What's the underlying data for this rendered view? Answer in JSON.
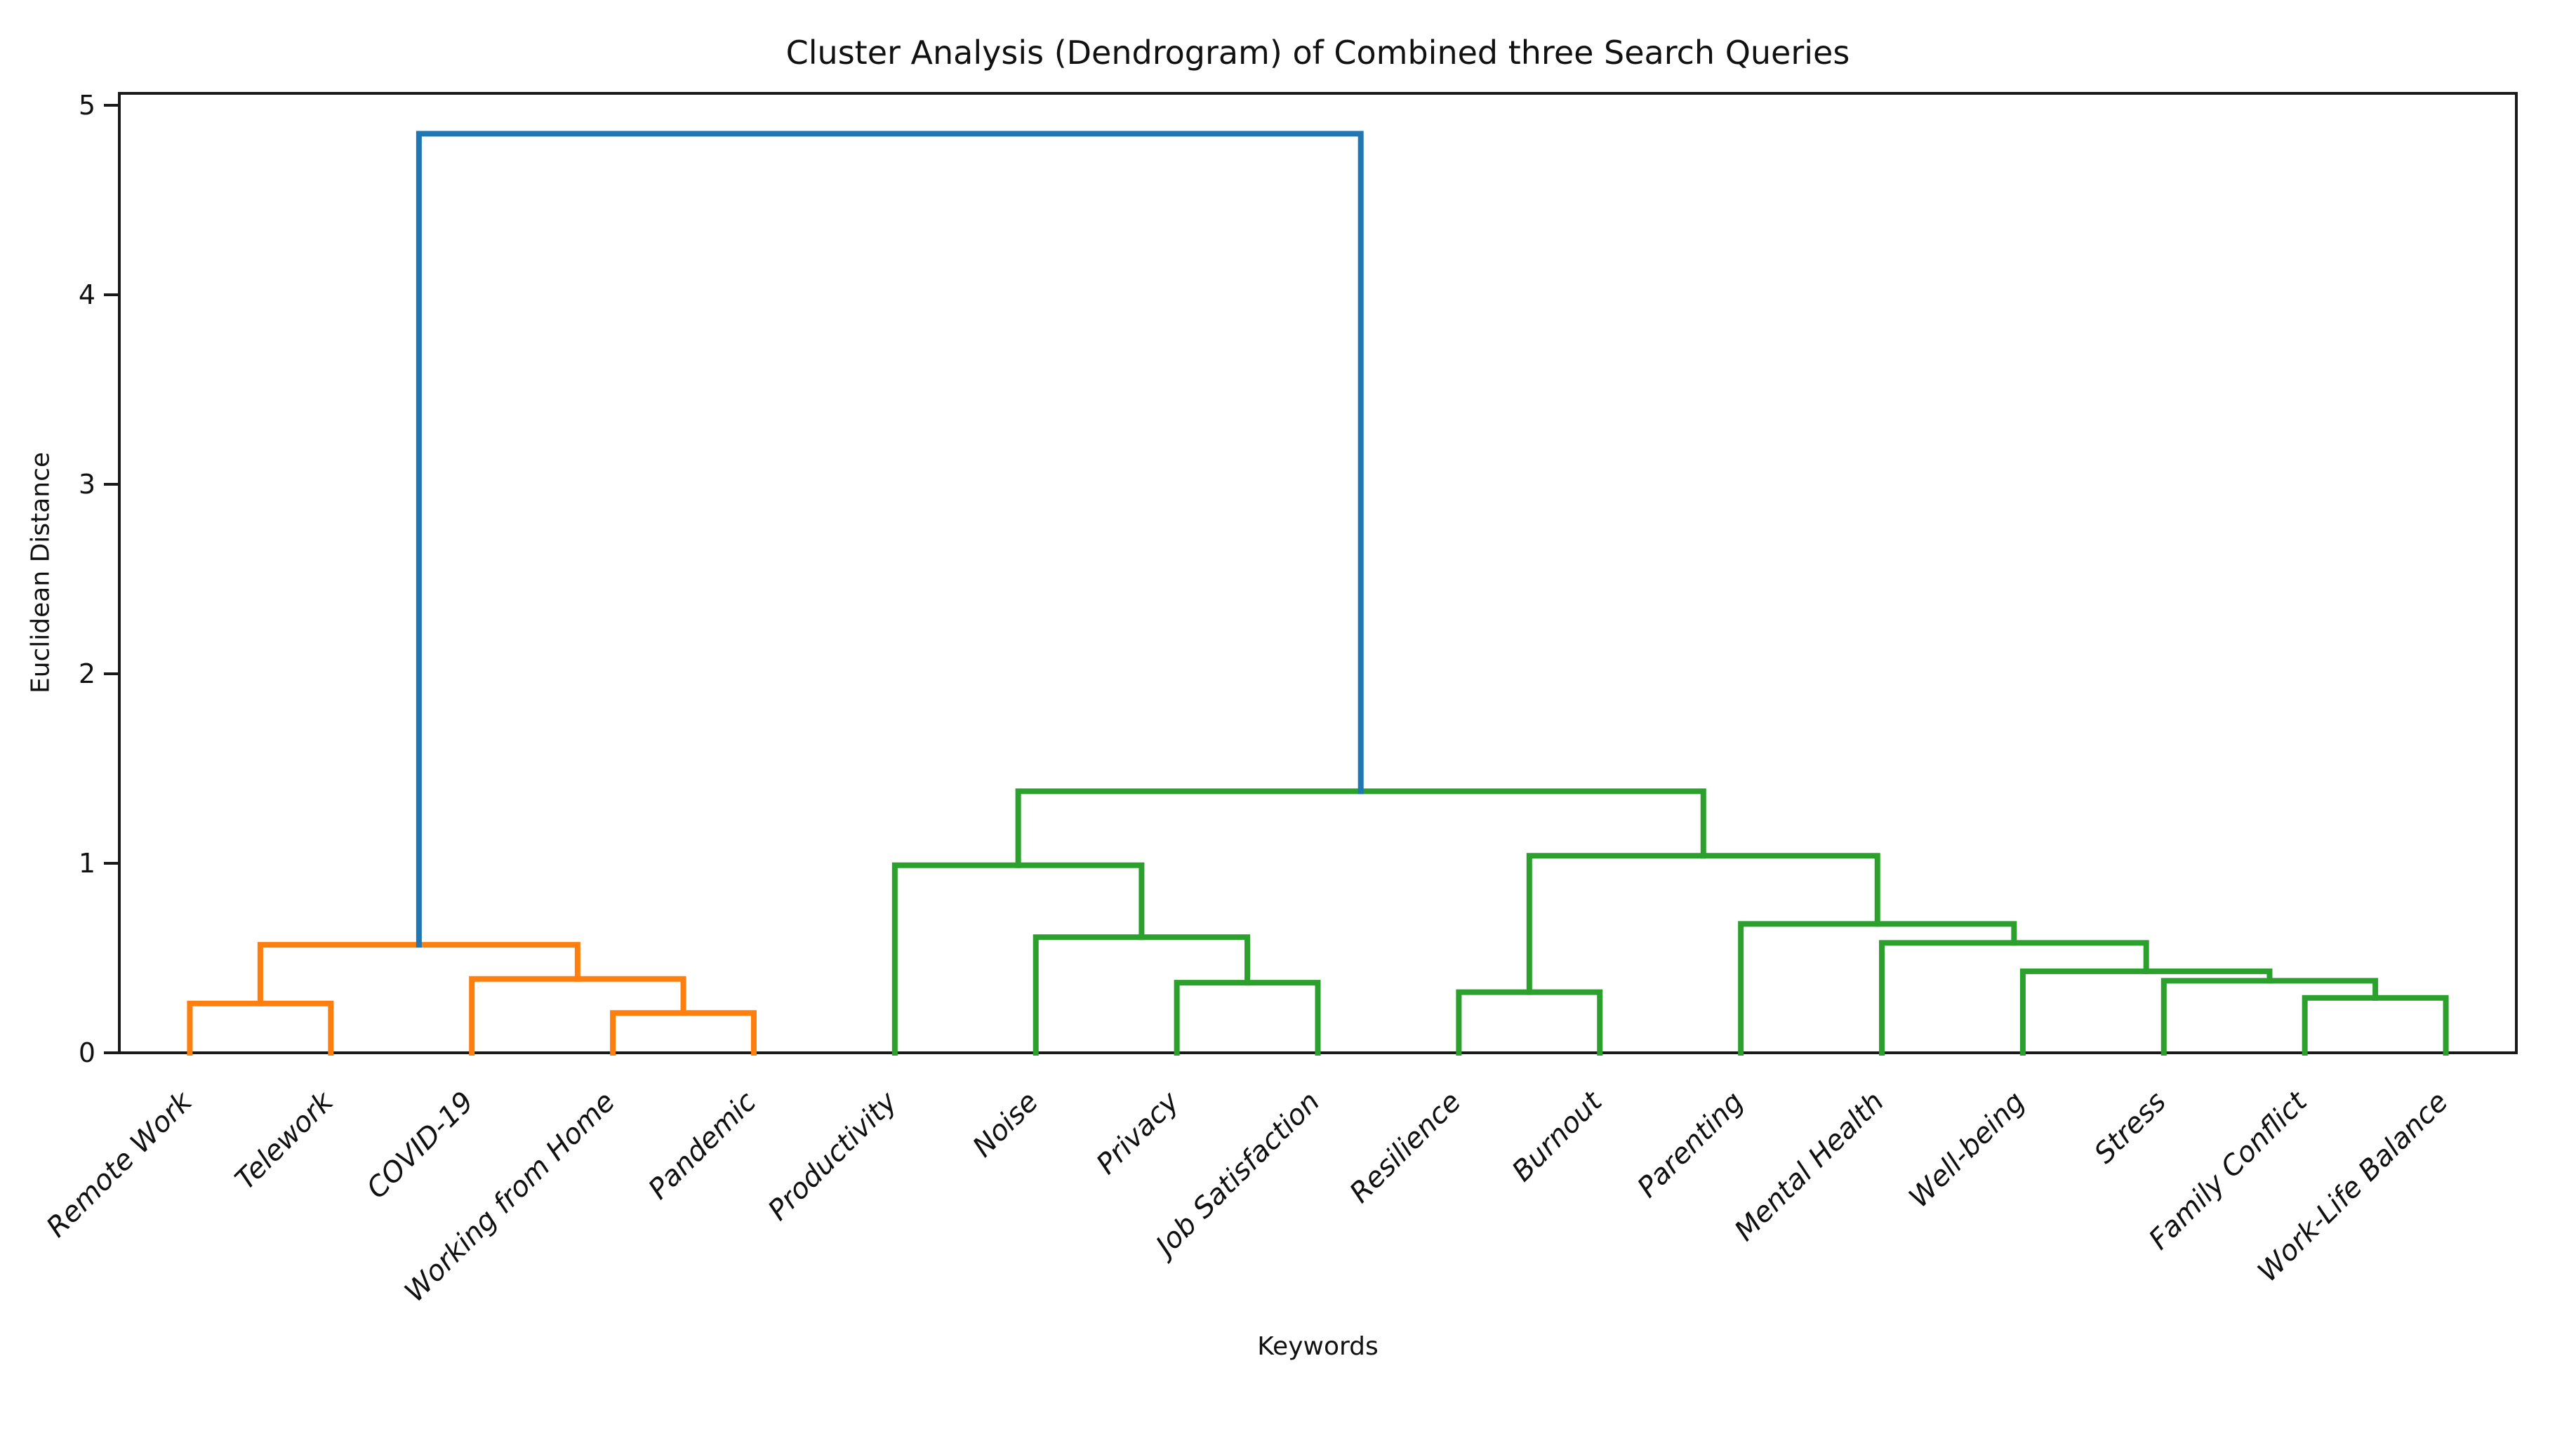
{
  "figure": {
    "background": "#ffffff"
  },
  "chart_data": {
    "type": "dendrogram",
    "title": "Cluster Analysis (Dendrogram) of Combined three Search Queries",
    "xlabel": "Keywords",
    "ylabel": "Euclidean Distance",
    "ylim": [
      0,
      5.06
    ],
    "yticks": [
      0,
      1,
      2,
      3,
      4,
      5
    ],
    "grid": false,
    "legend": null,
    "leaves": [
      "Remote Work",
      "Telework",
      "COVID-19",
      "Working from Home",
      "Pandemic",
      "Productivity",
      "Noise",
      "Privacy",
      "Job Satisfaction",
      "Resilience",
      "Burnout",
      "Parenting",
      "Mental Health",
      "Well-being",
      "Stress",
      "Family Conflict",
      "Work-Life Balance"
    ],
    "colors": {
      "cluster_orange": "#ff7f0e",
      "cluster_green": "#2ca02c",
      "root_blue": "#1f77b4",
      "axis": "#1a1a1a"
    },
    "merges": [
      {
        "id": "M1",
        "left": "L0",
        "right": "L1",
        "height": 0.26,
        "color": "cluster_orange"
      },
      {
        "id": "M2",
        "left": "L3",
        "right": "L4",
        "height": 0.21,
        "color": "cluster_orange"
      },
      {
        "id": "M3",
        "left": "L2",
        "right": "M2",
        "height": 0.39,
        "color": "cluster_orange"
      },
      {
        "id": "M4",
        "left": "M1",
        "right": "M3",
        "height": 0.57,
        "color": "cluster_orange"
      },
      {
        "id": "M5",
        "left": "L7",
        "right": "L8",
        "height": 0.37,
        "color": "cluster_green"
      },
      {
        "id": "M6",
        "left": "L6",
        "right": "M5",
        "height": 0.61,
        "color": "cluster_green"
      },
      {
        "id": "M7",
        "left": "L5",
        "right": "M6",
        "height": 0.99,
        "color": "cluster_green"
      },
      {
        "id": "M8",
        "left": "L9",
        "right": "L10",
        "height": 0.32,
        "color": "cluster_green"
      },
      {
        "id": "M9",
        "left": "L15",
        "right": "L16",
        "height": 0.29,
        "color": "cluster_green"
      },
      {
        "id": "M10",
        "left": "L14",
        "right": "M9",
        "height": 0.38,
        "color": "cluster_green"
      },
      {
        "id": "M11",
        "left": "L13",
        "right": "M10",
        "height": 0.43,
        "color": "cluster_green"
      },
      {
        "id": "M12",
        "left": "L12",
        "right": "M11",
        "height": 0.58,
        "color": "cluster_green"
      },
      {
        "id": "M13",
        "left": "L11",
        "right": "M12",
        "height": 0.68,
        "color": "cluster_green"
      },
      {
        "id": "M14",
        "left": "M8",
        "right": "M13",
        "height": 1.04,
        "color": "cluster_green"
      },
      {
        "id": "M15",
        "left": "M7",
        "right": "M14",
        "height": 1.38,
        "color": "cluster_green"
      },
      {
        "id": "M16",
        "left": "M4",
        "right": "M15",
        "height": 4.85,
        "color": "root_blue"
      }
    ]
  }
}
